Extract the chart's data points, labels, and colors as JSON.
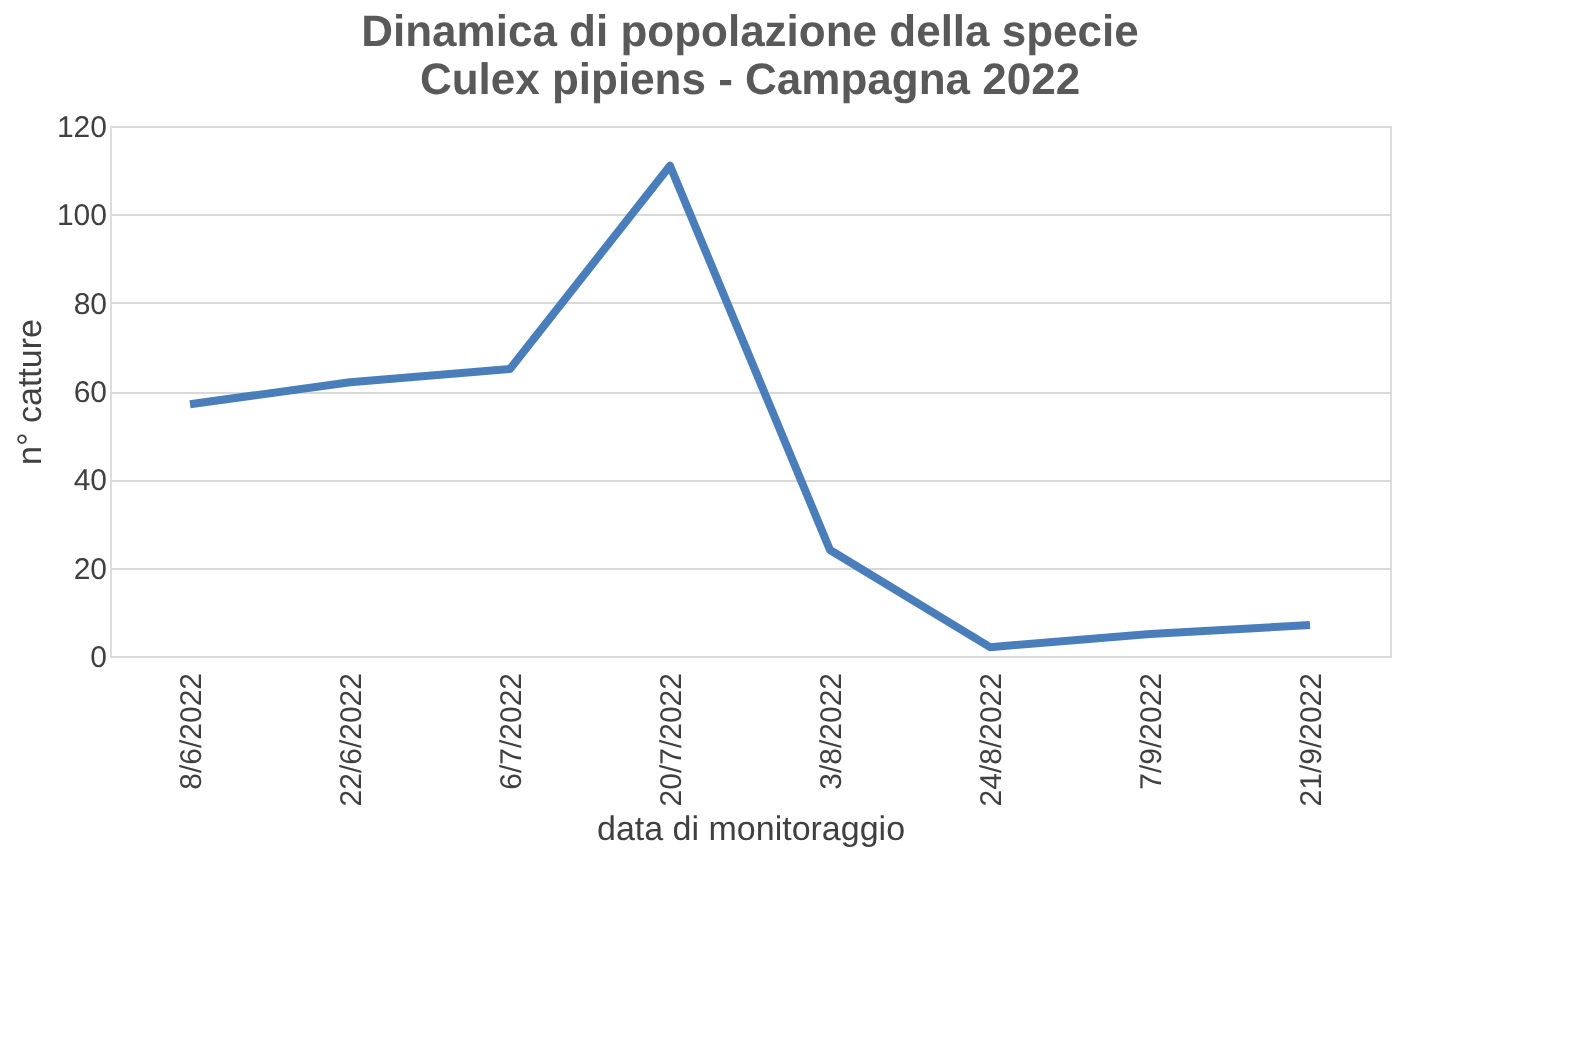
{
  "chart_data": {
    "type": "line",
    "title": "Dinamica di popolazione della specie\nCulex pipiens - Campagna 2022",
    "xlabel": "data di monitoraggio",
    "ylabel": "n° catture",
    "categories": [
      "8/6/2022",
      "22/6/2022",
      "6/7/2022",
      "20/7/2022",
      "3/8/2022",
      "24/8/2022",
      "7/9/2022",
      "21/9/2022"
    ],
    "series": [
      {
        "color": "#4a7ebb",
        "values": [
          57,
          62,
          65,
          111,
          24,
          2,
          5,
          7
        ]
      }
    ],
    "ylim": [
      0,
      120
    ],
    "yticks": [
      0,
      20,
      40,
      60,
      80,
      100,
      120
    ],
    "grid": "y",
    "legend": false,
    "marker": "none",
    "line_style": "solid"
  }
}
